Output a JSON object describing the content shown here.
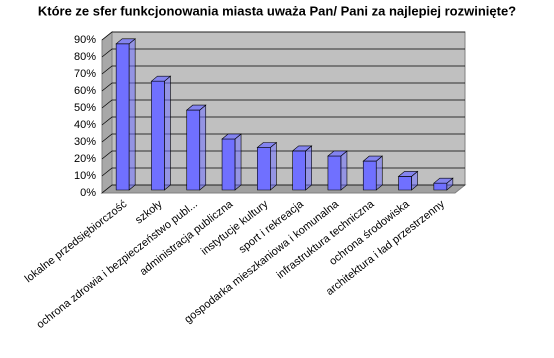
{
  "chart_data": {
    "type": "bar3d",
    "title": "Które ze sfer funkcjonowania miasta uważa Pan/ Pani za najlepiej rozwinięte?",
    "categories": [
      "lokalne przedsiębiorczość",
      "szkoły",
      "ochrona zdrowia i bezpieczeństwo publ...",
      "administracja publiczna",
      "instytucje kultury",
      "sport i rekreacja",
      "gospodarka mieszkaniowa i komunalna",
      "infrastruktura techniczna",
      "ochrona środowiska",
      "architektura i ład przestrzenny"
    ],
    "values": [
      86,
      64,
      47,
      30,
      25,
      23,
      20,
      17,
      8,
      4
    ],
    "color": "#7070ff",
    "ylim": [
      0,
      90
    ],
    "yticks": [
      {
        "value": 0,
        "label": "0%"
      },
      {
        "value": 10,
        "label": "10%"
      },
      {
        "value": 20,
        "label": "20%"
      },
      {
        "value": 30,
        "label": "30%"
      },
      {
        "value": 40,
        "label": "40%"
      },
      {
        "value": 50,
        "label": "50%"
      },
      {
        "value": 60,
        "label": "60%"
      },
      {
        "value": 70,
        "label": "70%"
      },
      {
        "value": 80,
        "label": "80%"
      },
      {
        "value": 90,
        "label": "90%"
      }
    ],
    "grid": true
  }
}
